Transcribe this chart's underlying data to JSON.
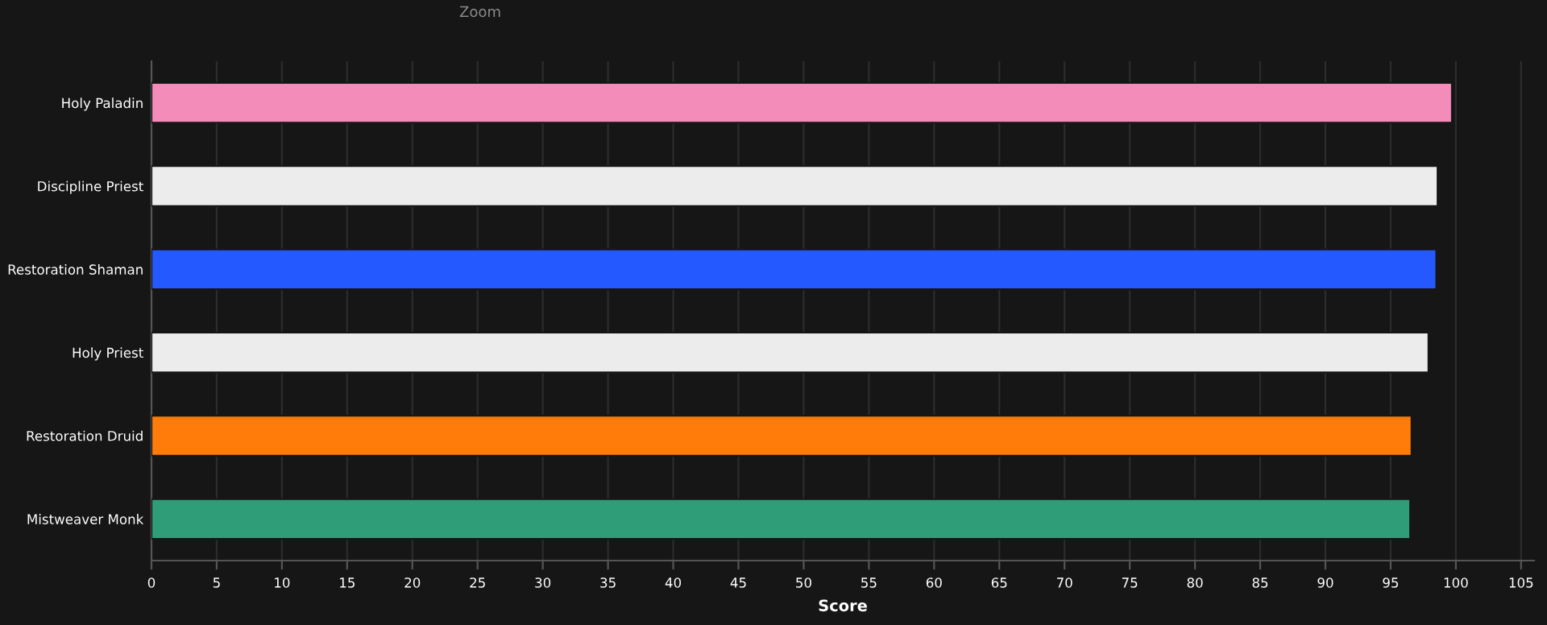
{
  "chart_data": {
    "type": "bar",
    "orientation": "horizontal",
    "xlabel": "Score",
    "categories": [
      "Holy Paladin",
      "Discipline Priest",
      "Restoration Shaman",
      "Holy Priest",
      "Restoration Druid",
      "Mistweaver Monk"
    ],
    "values": [
      99.7,
      98.6,
      98.5,
      97.9,
      96.6,
      96.5
    ],
    "colors": [
      "#f48cba",
      "#ececec",
      "#2459ff",
      "#ececec",
      "#ff7c0a",
      "#2e9d78"
    ],
    "xlim": [
      0,
      106
    ],
    "xticks": [
      0,
      5,
      10,
      15,
      20,
      25,
      30,
      35,
      40,
      45,
      50,
      55,
      60,
      65,
      70,
      75,
      80,
      85,
      90,
      95,
      100,
      105
    ],
    "grid": "x",
    "legend": false,
    "annotations": [
      "Zoom"
    ]
  }
}
